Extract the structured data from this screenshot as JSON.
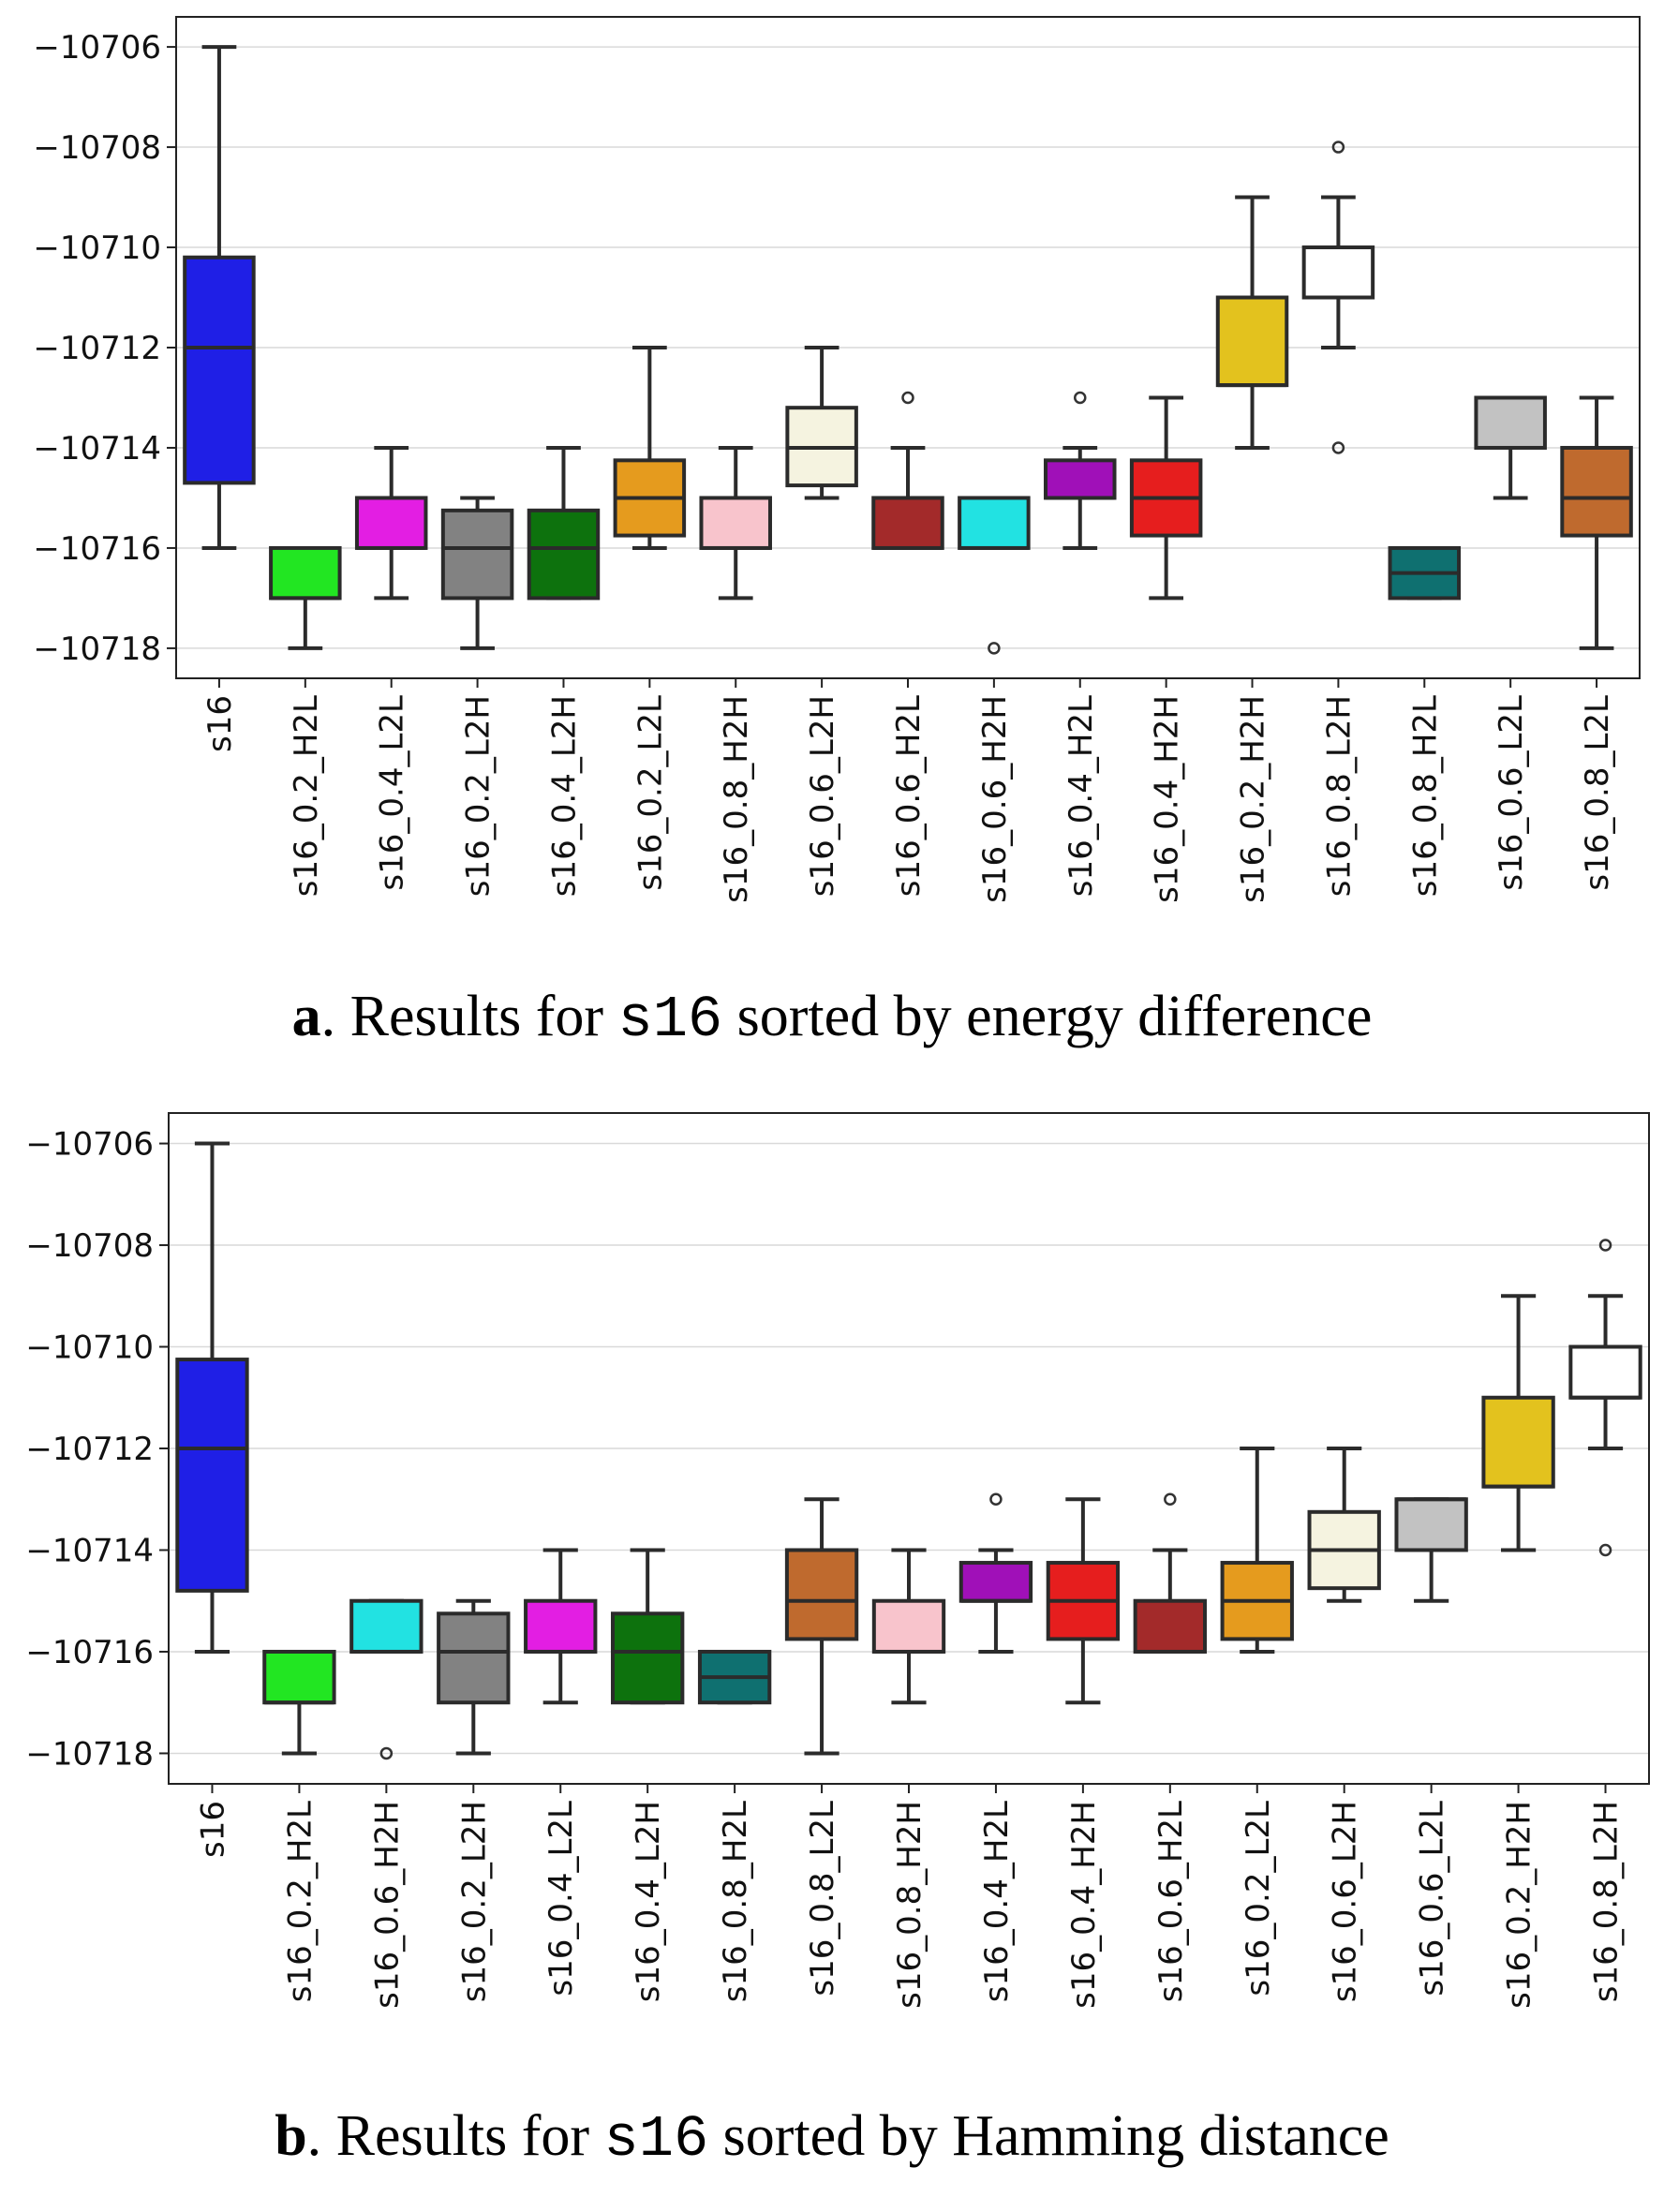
{
  "chart_data": [
    {
      "type": "box",
      "id": "a",
      "caption": {
        "letter": "a",
        "before": ". Results for ",
        "code": "s16",
        "after": " sorted by energy difference"
      },
      "ylim": [
        -10718.6,
        -10705.4
      ],
      "yticks": [
        -10706,
        -10708,
        -10710,
        -10712,
        -10714,
        -10716,
        -10718
      ],
      "ytick_labels": [
        "−10706",
        "−10708",
        "−10710",
        "−10712",
        "−10714",
        "−10716",
        "−10718"
      ],
      "grid": true,
      "boxes": [
        {
          "label": "s16",
          "color": "#1f1fe6",
          "whislo": -10716,
          "q1": -10714.7,
          "med": -10712,
          "q3": -10710.2,
          "whishi": -10706,
          "fliers": []
        },
        {
          "label": "s16_0.2_H2L",
          "color": "#22e622",
          "whislo": -10718,
          "q1": -10717,
          "med": -10717,
          "q3": -10716,
          "whishi": -10716,
          "fliers": []
        },
        {
          "label": "s16_0.4_L2L",
          "color": "#e31ee3",
          "whislo": -10717,
          "q1": -10716,
          "med": -10716,
          "q3": -10715,
          "whishi": -10714,
          "fliers": []
        },
        {
          "label": "s16_0.2_L2H",
          "color": "#828282",
          "whislo": -10718,
          "q1": -10717,
          "med": -10716,
          "q3": -10715.25,
          "whishi": -10715,
          "fliers": []
        },
        {
          "label": "s16_0.4_L2H",
          "color": "#0d720d",
          "whislo": -10717,
          "q1": -10717,
          "med": -10716,
          "q3": -10715.25,
          "whishi": -10714,
          "fliers": []
        },
        {
          "label": "s16_0.2_L2L",
          "color": "#e59b1e",
          "whislo": -10716,
          "q1": -10715.75,
          "med": -10715,
          "q3": -10714.25,
          "whishi": -10712,
          "fliers": []
        },
        {
          "label": "s16_0.8_H2H",
          "color": "#f8c4cc",
          "whislo": -10717,
          "q1": -10716,
          "med": -10716,
          "q3": -10715,
          "whishi": -10714,
          "fliers": []
        },
        {
          "label": "s16_0.6_L2H",
          "color": "#f5f3e0",
          "whislo": -10715,
          "q1": -10714.75,
          "med": -10714,
          "q3": -10713.2,
          "whishi": -10712,
          "fliers": []
        },
        {
          "label": "s16_0.6_H2L",
          "color": "#a32a2a",
          "whislo": -10716,
          "q1": -10716,
          "med": -10716,
          "q3": -10715,
          "whishi": -10714,
          "fliers": [
            -10713
          ]
        },
        {
          "label": "s16_0.6_H2H",
          "color": "#22e2e2",
          "whislo": -10716,
          "q1": -10716,
          "med": -10716,
          "q3": -10715,
          "whishi": -10715,
          "fliers": [
            -10718
          ]
        },
        {
          "label": "s16_0.4_H2L",
          "color": "#a010b8",
          "whislo": -10716,
          "q1": -10715,
          "med": -10715,
          "q3": -10714.25,
          "whishi": -10714,
          "fliers": [
            -10713
          ]
        },
        {
          "label": "s16_0.4_H2H",
          "color": "#e61e1e",
          "whislo": -10717,
          "q1": -10715.75,
          "med": -10715,
          "q3": -10714.25,
          "whishi": -10713,
          "fliers": []
        },
        {
          "label": "s16_0.2_H2H",
          "color": "#e3c21e",
          "whislo": -10714,
          "q1": -10712.75,
          "med": -10712.75,
          "q3": -10711,
          "whishi": -10709,
          "fliers": []
        },
        {
          "label": "s16_0.8_L2H",
          "color": "#ffffff",
          "whislo": -10712,
          "q1": -10711,
          "med": -10711,
          "q3": -10710,
          "whishi": -10709,
          "fliers": [
            -10708,
            -10714
          ]
        },
        {
          "label": "s16_0.8_H2L",
          "color": "#0f7070",
          "whislo": -10717,
          "q1": -10717,
          "med": -10716.5,
          "q3": -10716,
          "whishi": -10716,
          "fliers": []
        },
        {
          "label": "s16_0.6_L2L",
          "color": "#c2c2c2",
          "whislo": -10715,
          "q1": -10714,
          "med": -10713,
          "q3": -10713,
          "whishi": -10713,
          "fliers": []
        },
        {
          "label": "s16_0.8_L2L",
          "color": "#bf6a2e",
          "whislo": -10718,
          "q1": -10715.75,
          "med": -10715,
          "q3": -10714,
          "whishi": -10713,
          "fliers": []
        }
      ]
    },
    {
      "type": "box",
      "id": "b",
      "caption": {
        "letter": "b",
        "before": ". Results for ",
        "code": "s16",
        "after": " sorted by Hamming distance"
      },
      "ylim": [
        -10718.6,
        -10705.4
      ],
      "yticks": [
        -10706,
        -10708,
        -10710,
        -10712,
        -10714,
        -10716,
        -10718
      ],
      "ytick_labels": [
        "−10706",
        "−10708",
        "−10710",
        "−10712",
        "−10714",
        "−10716",
        "−10718"
      ],
      "grid": true,
      "boxes": [
        {
          "label": "s16",
          "color": "#1f1fe6",
          "whislo": -10716,
          "q1": -10714.8,
          "med": -10712,
          "q3": -10710.25,
          "whishi": -10706,
          "fliers": []
        },
        {
          "label": "s16_0.2_H2L",
          "color": "#22e622",
          "whislo": -10718,
          "q1": -10717,
          "med": -10717,
          "q3": -10716,
          "whishi": -10716,
          "fliers": []
        },
        {
          "label": "s16_0.6_H2H",
          "color": "#22e2e2",
          "whislo": -10716,
          "q1": -10716,
          "med": -10716,
          "q3": -10715,
          "whishi": -10715,
          "fliers": [
            -10718
          ]
        },
        {
          "label": "s16_0.2_L2H",
          "color": "#828282",
          "whislo": -10718,
          "q1": -10717,
          "med": -10716,
          "q3": -10715.25,
          "whishi": -10715,
          "fliers": []
        },
        {
          "label": "s16_0.4_L2L",
          "color": "#e31ee3",
          "whislo": -10717,
          "q1": -10716,
          "med": -10716,
          "q3": -10715,
          "whishi": -10714,
          "fliers": []
        },
        {
          "label": "s16_0.4_L2H",
          "color": "#0d720d",
          "whislo": -10717,
          "q1": -10717,
          "med": -10716,
          "q3": -10715.25,
          "whishi": -10714,
          "fliers": []
        },
        {
          "label": "s16_0.8_H2L",
          "color": "#0f7070",
          "whislo": -10717,
          "q1": -10717,
          "med": -10716.5,
          "q3": -10716,
          "whishi": -10716,
          "fliers": []
        },
        {
          "label": "s16_0.8_L2L",
          "color": "#bf6a2e",
          "whislo": -10718,
          "q1": -10715.75,
          "med": -10715,
          "q3": -10714,
          "whishi": -10713,
          "fliers": []
        },
        {
          "label": "s16_0.8_H2H",
          "color": "#f8c4cc",
          "whislo": -10717,
          "q1": -10716,
          "med": -10716,
          "q3": -10715,
          "whishi": -10714,
          "fliers": []
        },
        {
          "label": "s16_0.4_H2L",
          "color": "#a010b8",
          "whislo": -10716,
          "q1": -10715,
          "med": -10715,
          "q3": -10714.25,
          "whishi": -10714,
          "fliers": [
            -10713
          ]
        },
        {
          "label": "s16_0.4_H2H",
          "color": "#e61e1e",
          "whislo": -10717,
          "q1": -10715.75,
          "med": -10715,
          "q3": -10714.25,
          "whishi": -10713,
          "fliers": []
        },
        {
          "label": "s16_0.6_H2L",
          "color": "#a32a2a",
          "whislo": -10716,
          "q1": -10716,
          "med": -10716,
          "q3": -10715,
          "whishi": -10714,
          "fliers": [
            -10713
          ]
        },
        {
          "label": "s16_0.2_L2L",
          "color": "#e59b1e",
          "whislo": -10716,
          "q1": -10715.75,
          "med": -10715,
          "q3": -10714.25,
          "whishi": -10712,
          "fliers": []
        },
        {
          "label": "s16_0.6_L2H",
          "color": "#f5f3e0",
          "whislo": -10715,
          "q1": -10714.75,
          "med": -10714,
          "q3": -10713.25,
          "whishi": -10712,
          "fliers": []
        },
        {
          "label": "s16_0.6_L2L",
          "color": "#c2c2c2",
          "whislo": -10715,
          "q1": -10714,
          "med": -10713,
          "q3": -10713,
          "whishi": -10713,
          "fliers": []
        },
        {
          "label": "s16_0.2_H2H",
          "color": "#e3c21e",
          "whislo": -10714,
          "q1": -10712.75,
          "med": -10712.75,
          "q3": -10711,
          "whishi": -10709,
          "fliers": []
        },
        {
          "label": "s16_0.8_L2H",
          "color": "#ffffff",
          "whislo": -10712,
          "q1": -10711,
          "med": -10711,
          "q3": -10710,
          "whishi": -10709,
          "fliers": [
            -10708,
            -10714
          ]
        }
      ]
    }
  ]
}
